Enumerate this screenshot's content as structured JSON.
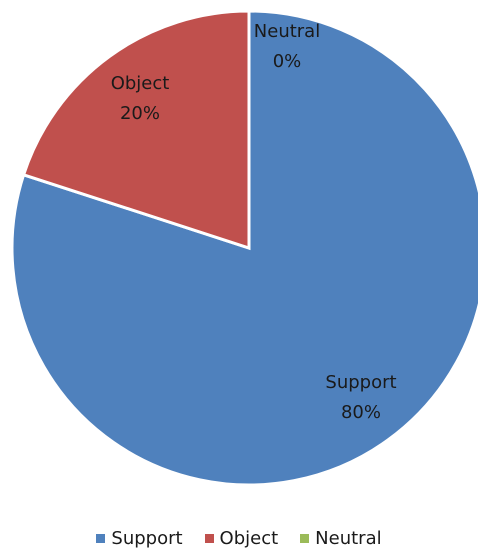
{
  "chart_data": {
    "type": "pie",
    "categories": [
      "Support",
      "Object",
      "Neutral"
    ],
    "values": [
      80,
      20,
      0
    ],
    "labels": [
      "80%",
      "20%",
      "0%"
    ],
    "colors": [
      "#4F81BD",
      "#C0504D",
      "#9BBB59"
    ],
    "legend_position": "bottom"
  }
}
